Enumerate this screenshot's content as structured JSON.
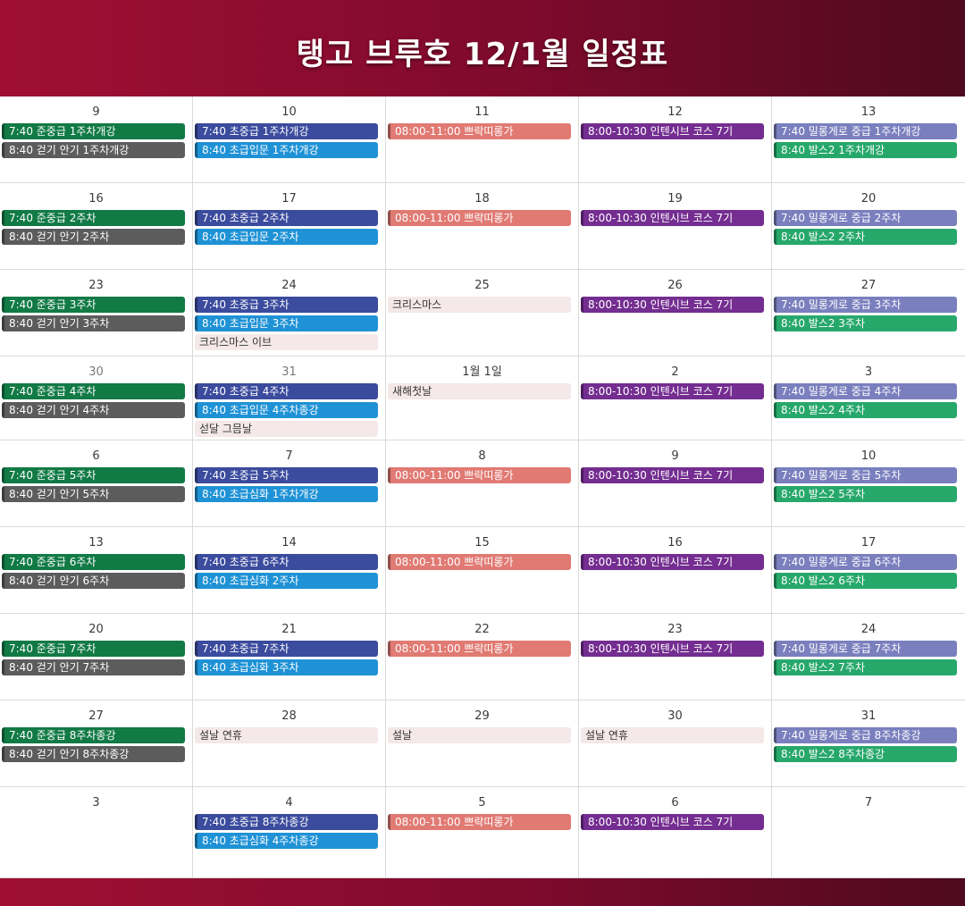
{
  "title": "탱고 브루호 12/1월 일정표",
  "colors": {
    "green": "#117a45",
    "gray": "#5c5c5c",
    "navy": "#3b4b9d",
    "blue": "#1f92d6",
    "salmon": "#e07a73",
    "purple": "#742d90",
    "lavender": "#7a7fbe",
    "teal": "#27a86b",
    "pink": "#f4e8e8"
  },
  "weeks": [
    [
      {
        "day": "9",
        "events": [
          {
            "text": "7:40 준중급 1주차개강",
            "color": "green"
          },
          {
            "text": "8:40 걷기 안기 1주차개강",
            "color": "gray"
          }
        ]
      },
      {
        "day": "10",
        "events": [
          {
            "text": "7:40 초중급 1주차개강",
            "color": "navy"
          },
          {
            "text": "8:40 초급입문 1주차개강",
            "color": "blue"
          }
        ]
      },
      {
        "day": "11",
        "events": [
          {
            "text": "08:00-11:00 쁘락띠롱가",
            "color": "salmon"
          }
        ]
      },
      {
        "day": "12",
        "events": [
          {
            "text": "8:00-10:30 인텐시브 코스 7기",
            "color": "purple"
          }
        ]
      },
      {
        "day": "13",
        "events": [
          {
            "text": "7:40 밀롱게로 중급 1주차개강",
            "color": "lavender"
          },
          {
            "text": "8:40 발스2 1주차개강",
            "color": "teal"
          }
        ]
      }
    ],
    [
      {
        "day": "16",
        "events": [
          {
            "text": "7:40 준중급 2주차",
            "color": "green"
          },
          {
            "text": "8:40 걷기 안기 2주차",
            "color": "gray"
          }
        ]
      },
      {
        "day": "17",
        "events": [
          {
            "text": "7:40 초중급 2주차",
            "color": "navy"
          },
          {
            "text": "8:40 초급입문 2주차",
            "color": "blue"
          }
        ]
      },
      {
        "day": "18",
        "events": [
          {
            "text": "08:00-11:00 쁘락띠롱가",
            "color": "salmon"
          }
        ]
      },
      {
        "day": "19",
        "events": [
          {
            "text": "8:00-10:30 인텐시브 코스 7기",
            "color": "purple"
          }
        ]
      },
      {
        "day": "20",
        "events": [
          {
            "text": "7:40 밀롱게로 중급 2주차",
            "color": "lavender"
          },
          {
            "text": "8:40 발스2 2주차",
            "color": "teal"
          }
        ]
      }
    ],
    [
      {
        "day": "23",
        "events": [
          {
            "text": "7:40 준중급 3주차",
            "color": "green"
          },
          {
            "text": "8:40 걷기 안기 3주차",
            "color": "gray"
          }
        ]
      },
      {
        "day": "24",
        "events": [
          {
            "text": "7:40 초중급 3주차",
            "color": "navy"
          },
          {
            "text": "8:40 초급입문 3주차",
            "color": "blue"
          },
          {
            "text": "크리스마스 이브",
            "color": "pink"
          }
        ]
      },
      {
        "day": "25",
        "events": [
          {
            "text": "크리스마스",
            "color": "pink"
          }
        ]
      },
      {
        "day": "26",
        "events": [
          {
            "text": "8:00-10:30 인텐시브 코스 7기",
            "color": "purple"
          }
        ]
      },
      {
        "day": "27",
        "events": [
          {
            "text": "7:40 밀롱게로 중급 3주차",
            "color": "lavender"
          },
          {
            "text": "8:40 발스2 3주차",
            "color": "teal"
          }
        ]
      }
    ],
    [
      {
        "day": "30",
        "dim": true,
        "events": [
          {
            "text": "7:40 준중급 4주차",
            "color": "green"
          },
          {
            "text": "8:40 걷기 안기 4주차",
            "color": "gray"
          }
        ]
      },
      {
        "day": "31",
        "dim": true,
        "events": [
          {
            "text": "7:40 초중급 4주차",
            "color": "navy"
          },
          {
            "text": "8:40 초급입문 4주차종강",
            "color": "blue"
          },
          {
            "text": "섣달 그믐날",
            "color": "pink"
          }
        ]
      },
      {
        "day": "1월 1일",
        "events": [
          {
            "text": "새해첫날",
            "color": "pink"
          }
        ]
      },
      {
        "day": "2",
        "events": [
          {
            "text": "8:00-10:30 인텐시브 코스 7기",
            "color": "purple"
          }
        ]
      },
      {
        "day": "3",
        "events": [
          {
            "text": "7:40 밀롱게로 중급 4주차",
            "color": "lavender"
          },
          {
            "text": "8:40 발스2 4주차",
            "color": "teal"
          }
        ]
      }
    ],
    [
      {
        "day": "6",
        "events": [
          {
            "text": "7:40 준중급 5주차",
            "color": "green"
          },
          {
            "text": "8:40 걷기 안기 5주차",
            "color": "gray"
          }
        ]
      },
      {
        "day": "7",
        "events": [
          {
            "text": "7:40 초중급 5주차",
            "color": "navy"
          },
          {
            "text": "8:40 초급심화 1주차개강",
            "color": "blue"
          }
        ]
      },
      {
        "day": "8",
        "events": [
          {
            "text": "08:00-11:00 쁘락띠롱가",
            "color": "salmon"
          }
        ]
      },
      {
        "day": "9",
        "events": [
          {
            "text": "8:00-10:30 인텐시브 코스 7기",
            "color": "purple"
          }
        ]
      },
      {
        "day": "10",
        "events": [
          {
            "text": "7:40 밀롱게로 중급 5주차",
            "color": "lavender"
          },
          {
            "text": "8:40 발스2 5주차",
            "color": "teal"
          }
        ]
      }
    ],
    [
      {
        "day": "13",
        "events": [
          {
            "text": "7:40 준중급 6주차",
            "color": "green"
          },
          {
            "text": "8:40 걷기 안기 6주차",
            "color": "gray"
          }
        ]
      },
      {
        "day": "14",
        "events": [
          {
            "text": "7:40 초중급 6주차",
            "color": "navy"
          },
          {
            "text": "8:40 초급심화 2주차",
            "color": "blue"
          }
        ]
      },
      {
        "day": "15",
        "events": [
          {
            "text": "08:00-11:00 쁘락띠롱가",
            "color": "salmon"
          }
        ]
      },
      {
        "day": "16",
        "events": [
          {
            "text": "8:00-10:30 인텐시브 코스 7기",
            "color": "purple"
          }
        ]
      },
      {
        "day": "17",
        "events": [
          {
            "text": "7:40 밀롱게로 중급 6주차",
            "color": "lavender"
          },
          {
            "text": "8:40 발스2 6주차",
            "color": "teal"
          }
        ]
      }
    ],
    [
      {
        "day": "20",
        "events": [
          {
            "text": "7:40 준중급 7주차",
            "color": "green"
          },
          {
            "text": "8:40 걷기 안기 7주차",
            "color": "gray"
          }
        ]
      },
      {
        "day": "21",
        "events": [
          {
            "text": "7:40 초중급 7주차",
            "color": "navy"
          },
          {
            "text": "8:40 초급심화 3주차",
            "color": "blue"
          }
        ]
      },
      {
        "day": "22",
        "events": [
          {
            "text": "08:00-11:00 쁘락띠롱가",
            "color": "salmon"
          }
        ]
      },
      {
        "day": "23",
        "events": [
          {
            "text": "8:00-10:30 인텐시브 코스 7기",
            "color": "purple"
          }
        ]
      },
      {
        "day": "24",
        "events": [
          {
            "text": "7:40 밀롱게로 중급 7주차",
            "color": "lavender"
          },
          {
            "text": "8:40 발스2 7주차",
            "color": "teal"
          }
        ]
      }
    ],
    [
      {
        "day": "27",
        "events": [
          {
            "text": "7:40 준중급 8주차종강",
            "color": "green"
          },
          {
            "text": "8:40 걷기 안기 8주차종강",
            "color": "gray"
          }
        ]
      },
      {
        "day": "28",
        "events": [
          {
            "text": "설날 연휴",
            "color": "pink"
          }
        ]
      },
      {
        "day": "29",
        "events": [
          {
            "text": "설날",
            "color": "pink"
          }
        ]
      },
      {
        "day": "30",
        "events": [
          {
            "text": "설날 연휴",
            "color": "pink"
          }
        ]
      },
      {
        "day": "31",
        "events": [
          {
            "text": "7:40 밀롱게로 중급 8주차종강",
            "color": "lavender"
          },
          {
            "text": "8:40 발스2 8주차종강",
            "color": "teal"
          }
        ]
      }
    ],
    [
      {
        "day": "3",
        "events": []
      },
      {
        "day": "4",
        "events": [
          {
            "text": "7:40 초중급 8주차종강",
            "color": "navy"
          },
          {
            "text": "8:40 초급심화 4주차종강",
            "color": "blue"
          }
        ]
      },
      {
        "day": "5",
        "events": [
          {
            "text": "08:00-11:00 쁘락띠롱가",
            "color": "salmon"
          }
        ]
      },
      {
        "day": "6",
        "events": [
          {
            "text": "8:00-10:30 인텐시브 코스 7기",
            "color": "purple"
          }
        ]
      },
      {
        "day": "7",
        "events": []
      }
    ]
  ]
}
